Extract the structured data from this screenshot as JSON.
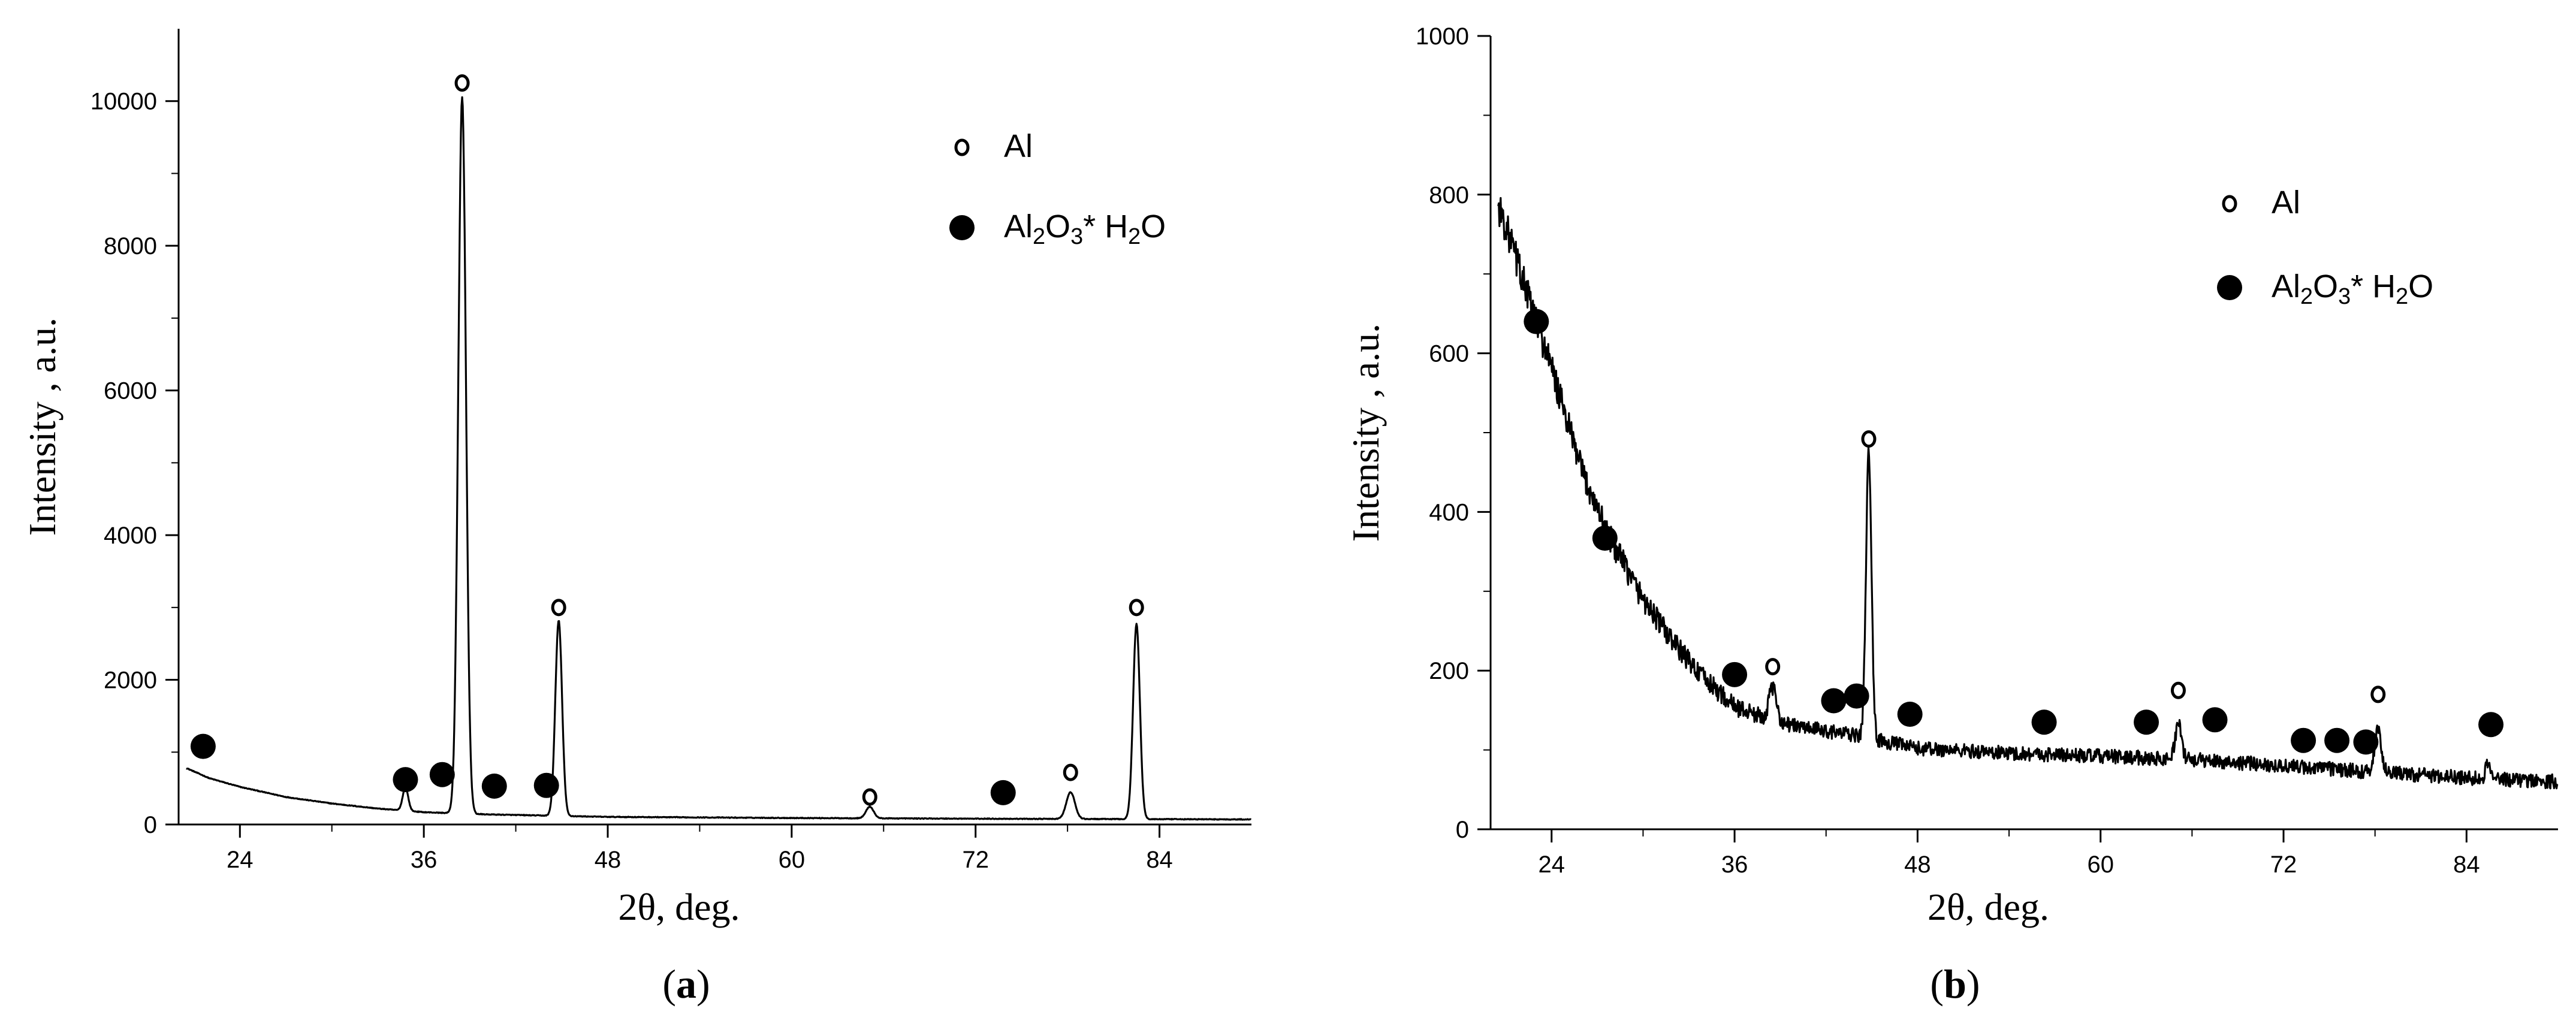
{
  "chart_data": [
    {
      "type": "line",
      "panel": "a",
      "caption": {
        "open": "(",
        "letter": "a",
        "close": ")"
      },
      "xlabel": "2θ, deg.",
      "ylabel": "Intensity , a.u.",
      "xlim": [
        20,
        90
      ],
      "ylim": [
        0,
        11000
      ],
      "x_ticks": [
        24,
        36,
        48,
        60,
        72,
        84
      ],
      "y_ticks": [
        0,
        2000,
        4000,
        6000,
        8000,
        10000
      ],
      "legend_position": "top-right",
      "legend": [
        {
          "symbol": "open-circle",
          "parts": [
            {
              "t": "Al"
            }
          ]
        },
        {
          "symbol": "filled-circle",
          "parts": [
            {
              "t": "Al"
            },
            {
              "t": "2",
              "sub": true
            },
            {
              "t": "O"
            },
            {
              "t": "3",
              "sub": true
            },
            {
              "t": "* H"
            },
            {
              "t": "2",
              "sub": true
            },
            {
              "t": "O"
            }
          ]
        }
      ],
      "baseline": [
        [
          20.5,
          780
        ],
        [
          22,
          640
        ],
        [
          24,
          520
        ],
        [
          27,
          380
        ],
        [
          30,
          290
        ],
        [
          33,
          220
        ],
        [
          36,
          170
        ],
        [
          40,
          140
        ],
        [
          48,
          105
        ],
        [
          60,
          90
        ],
        [
          72,
          80
        ],
        [
          90,
          70
        ]
      ],
      "peaks": [
        {
          "x": 34.8,
          "y": 320,
          "w": 0.18
        },
        {
          "x": 38.5,
          "y": 9900,
          "w": 0.25
        },
        {
          "x": 44.8,
          "y": 2700,
          "w": 0.22
        },
        {
          "x": 65.1,
          "y": 160,
          "w": 0.25
        },
        {
          "x": 78.2,
          "y": 370,
          "w": 0.28
        },
        {
          "x": 82.5,
          "y": 2700,
          "w": 0.22
        }
      ],
      "phase_markers": [
        {
          "phase": "Al",
          "symbol": "open-circle",
          "x": 38.5,
          "y": 10250
        },
        {
          "phase": "Al",
          "symbol": "open-circle",
          "x": 44.8,
          "y": 3000
        },
        {
          "phase": "Al",
          "symbol": "open-circle",
          "x": 65.1,
          "y": 380
        },
        {
          "phase": "Al",
          "symbol": "open-circle",
          "x": 78.2,
          "y": 720
        },
        {
          "phase": "Al",
          "symbol": "open-circle",
          "x": 82.5,
          "y": 3000
        },
        {
          "phase": "Al2O3*H2O",
          "symbol": "filled-circle",
          "x": 21.6,
          "y": 1080
        },
        {
          "phase": "Al2O3*H2O",
          "symbol": "filled-circle",
          "x": 34.8,
          "y": 620
        },
        {
          "phase": "Al2O3*H2O",
          "symbol": "filled-circle",
          "x": 37.2,
          "y": 690
        },
        {
          "phase": "Al2O3*H2O",
          "symbol": "filled-circle",
          "x": 40.6,
          "y": 530
        },
        {
          "phase": "Al2O3*H2O",
          "symbol": "filled-circle",
          "x": 44.0,
          "y": 540
        },
        {
          "phase": "Al2O3*H2O",
          "symbol": "filled-circle",
          "x": 73.8,
          "y": 440
        }
      ]
    },
    {
      "type": "line",
      "panel": "b",
      "caption": {
        "open": "(",
        "letter": "b",
        "close": ")"
      },
      "xlabel": "2θ, deg.",
      "ylabel": "Intensity , a.u.",
      "xlim": [
        20,
        90
      ],
      "ylim": [
        0,
        1000
      ],
      "x_ticks": [
        24,
        36,
        48,
        60,
        72,
        84
      ],
      "y_ticks": [
        0,
        200,
        400,
        600,
        800,
        1000
      ],
      "legend_position": "top-right",
      "legend": [
        {
          "symbol": "open-circle",
          "parts": [
            {
              "t": "Al"
            }
          ]
        },
        {
          "symbol": "filled-circle",
          "parts": [
            {
              "t": "Al"
            },
            {
              "t": "2",
              "sub": true
            },
            {
              "t": "O"
            },
            {
              "t": "3",
              "sub": true
            },
            {
              "t": "* H"
            },
            {
              "t": "2",
              "sub": true
            },
            {
              "t": "O"
            }
          ]
        }
      ],
      "baseline": [
        [
          20,
          810
        ],
        [
          21,
          760
        ],
        [
          22,
          700
        ],
        [
          23,
          640
        ],
        [
          24,
          580
        ],
        [
          25,
          515
        ],
        [
          26,
          450
        ],
        [
          28,
          360
        ],
        [
          30,
          290
        ],
        [
          32,
          235
        ],
        [
          34,
          190
        ],
        [
          36,
          155
        ],
        [
          38,
          140
        ],
        [
          40,
          130
        ],
        [
          44,
          118
        ],
        [
          48,
          102
        ],
        [
          54,
          96
        ],
        [
          60,
          92
        ],
        [
          66,
          88
        ],
        [
          72,
          80
        ],
        [
          78,
          72
        ],
        [
          84,
          65
        ],
        [
          90,
          60
        ]
      ],
      "noise_amplitude": 9,
      "peaks": [
        {
          "x": 38.5,
          "y": 40,
          "w": 0.25
        },
        {
          "x": 44.8,
          "y": 360,
          "w": 0.18
        },
        {
          "x": 65.1,
          "y": 45,
          "w": 0.2
        },
        {
          "x": 78.2,
          "y": 55,
          "w": 0.22
        },
        {
          "x": 85.4,
          "y": 22,
          "w": 0.15
        }
      ],
      "phase_markers": [
        {
          "phase": "Al",
          "symbol": "open-circle",
          "x": 38.5,
          "y": 205
        },
        {
          "phase": "Al",
          "symbol": "open-circle",
          "x": 44.8,
          "y": 492
        },
        {
          "phase": "Al",
          "symbol": "open-circle",
          "x": 65.1,
          "y": 175
        },
        {
          "phase": "Al",
          "symbol": "open-circle",
          "x": 78.2,
          "y": 170
        },
        {
          "phase": "Al2O3*H2O",
          "symbol": "filled-circle",
          "x": 23.0,
          "y": 640
        },
        {
          "phase": "Al2O3*H2O",
          "symbol": "filled-circle",
          "x": 27.5,
          "y": 367
        },
        {
          "phase": "Al2O3*H2O",
          "symbol": "filled-circle",
          "x": 36.0,
          "y": 195
        },
        {
          "phase": "Al2O3*H2O",
          "symbol": "filled-circle",
          "x": 42.5,
          "y": 162
        },
        {
          "phase": "Al2O3*H2O",
          "symbol": "filled-circle",
          "x": 44.0,
          "y": 168
        },
        {
          "phase": "Al2O3*H2O",
          "symbol": "filled-circle",
          "x": 47.5,
          "y": 145
        },
        {
          "phase": "Al2O3*H2O",
          "symbol": "filled-circle",
          "x": 56.3,
          "y": 135
        },
        {
          "phase": "Al2O3*H2O",
          "symbol": "filled-circle",
          "x": 63.0,
          "y": 135
        },
        {
          "phase": "Al2O3*H2O",
          "symbol": "filled-circle",
          "x": 67.5,
          "y": 138
        },
        {
          "phase": "Al2O3*H2O",
          "symbol": "filled-circle",
          "x": 73.3,
          "y": 112
        },
        {
          "phase": "Al2O3*H2O",
          "symbol": "filled-circle",
          "x": 75.5,
          "y": 112
        },
        {
          "phase": "Al2O3*H2O",
          "symbol": "filled-circle",
          "x": 77.4,
          "y": 110
        },
        {
          "phase": "Al2O3*H2O",
          "symbol": "filled-circle",
          "x": 85.6,
          "y": 132
        }
      ]
    }
  ]
}
